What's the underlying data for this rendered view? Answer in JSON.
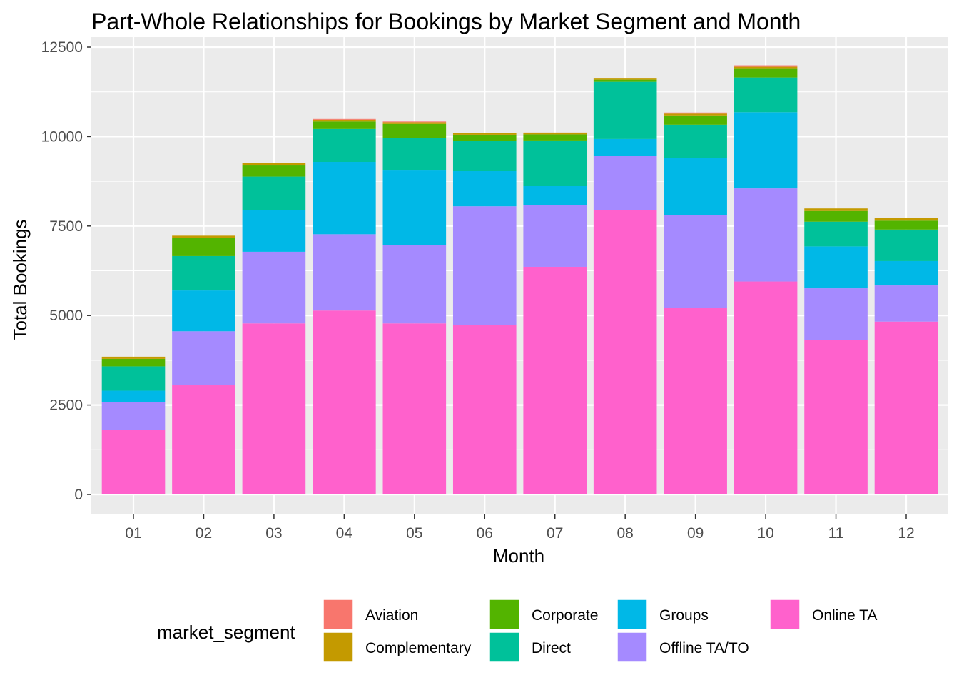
{
  "chart_data": {
    "type": "bar",
    "stacked": true,
    "title": "Part-Whole Relationships for Bookings by Market Segment and Month",
    "xlabel": "Month",
    "ylabel": "Total Bookings",
    "ylim": [
      0,
      12500
    ],
    "yticks": [
      "0",
      "2500",
      "5000",
      "7500",
      "10000",
      "12500"
    ],
    "grid": true,
    "legend": {
      "title": "market_segment",
      "position": "bottom",
      "items": [
        "Aviation",
        "Complementary",
        "Corporate",
        "Direct",
        "Groups",
        "Offline TA/TO",
        "Online TA"
      ]
    },
    "categories": [
      "01",
      "02",
      "03",
      "04",
      "05",
      "06",
      "07",
      "08",
      "09",
      "10",
      "11",
      "12"
    ],
    "series": [
      {
        "name": "Online TA",
        "color": "#FF61CC",
        "values": [
          1800,
          3050,
          4780,
          5140,
          4780,
          4730,
          6360,
          7950,
          5220,
          5950,
          4310,
          4830
        ]
      },
      {
        "name": "Offline TA/TO",
        "color": "#A58AFF",
        "values": [
          790,
          1510,
          2000,
          2130,
          2180,
          3320,
          1730,
          1500,
          2580,
          2600,
          1450,
          1010
        ]
      },
      {
        "name": "Groups",
        "color": "#00B8E7",
        "values": [
          310,
          1140,
          1170,
          2020,
          2110,
          1000,
          540,
          480,
          1590,
          2130,
          1170,
          680
        ]
      },
      {
        "name": "Direct",
        "color": "#00C19A",
        "values": [
          680,
          960,
          930,
          920,
          880,
          820,
          1260,
          1600,
          940,
          970,
          690,
          880
        ]
      },
      {
        "name": "Corporate",
        "color": "#53B400",
        "values": [
          210,
          500,
          330,
          210,
          400,
          180,
          170,
          60,
          260,
          240,
          300,
          250
        ]
      },
      {
        "name": "Complementary",
        "color": "#C49A00",
        "values": [
          60,
          70,
          60,
          50,
          50,
          40,
          50,
          30,
          50,
          60,
          70,
          70
        ]
      },
      {
        "name": "Aviation",
        "color": "#F8766D",
        "values": [
          0,
          0,
          0,
          20,
          20,
          0,
          0,
          0,
          30,
          40,
          0,
          0
        ]
      }
    ]
  }
}
